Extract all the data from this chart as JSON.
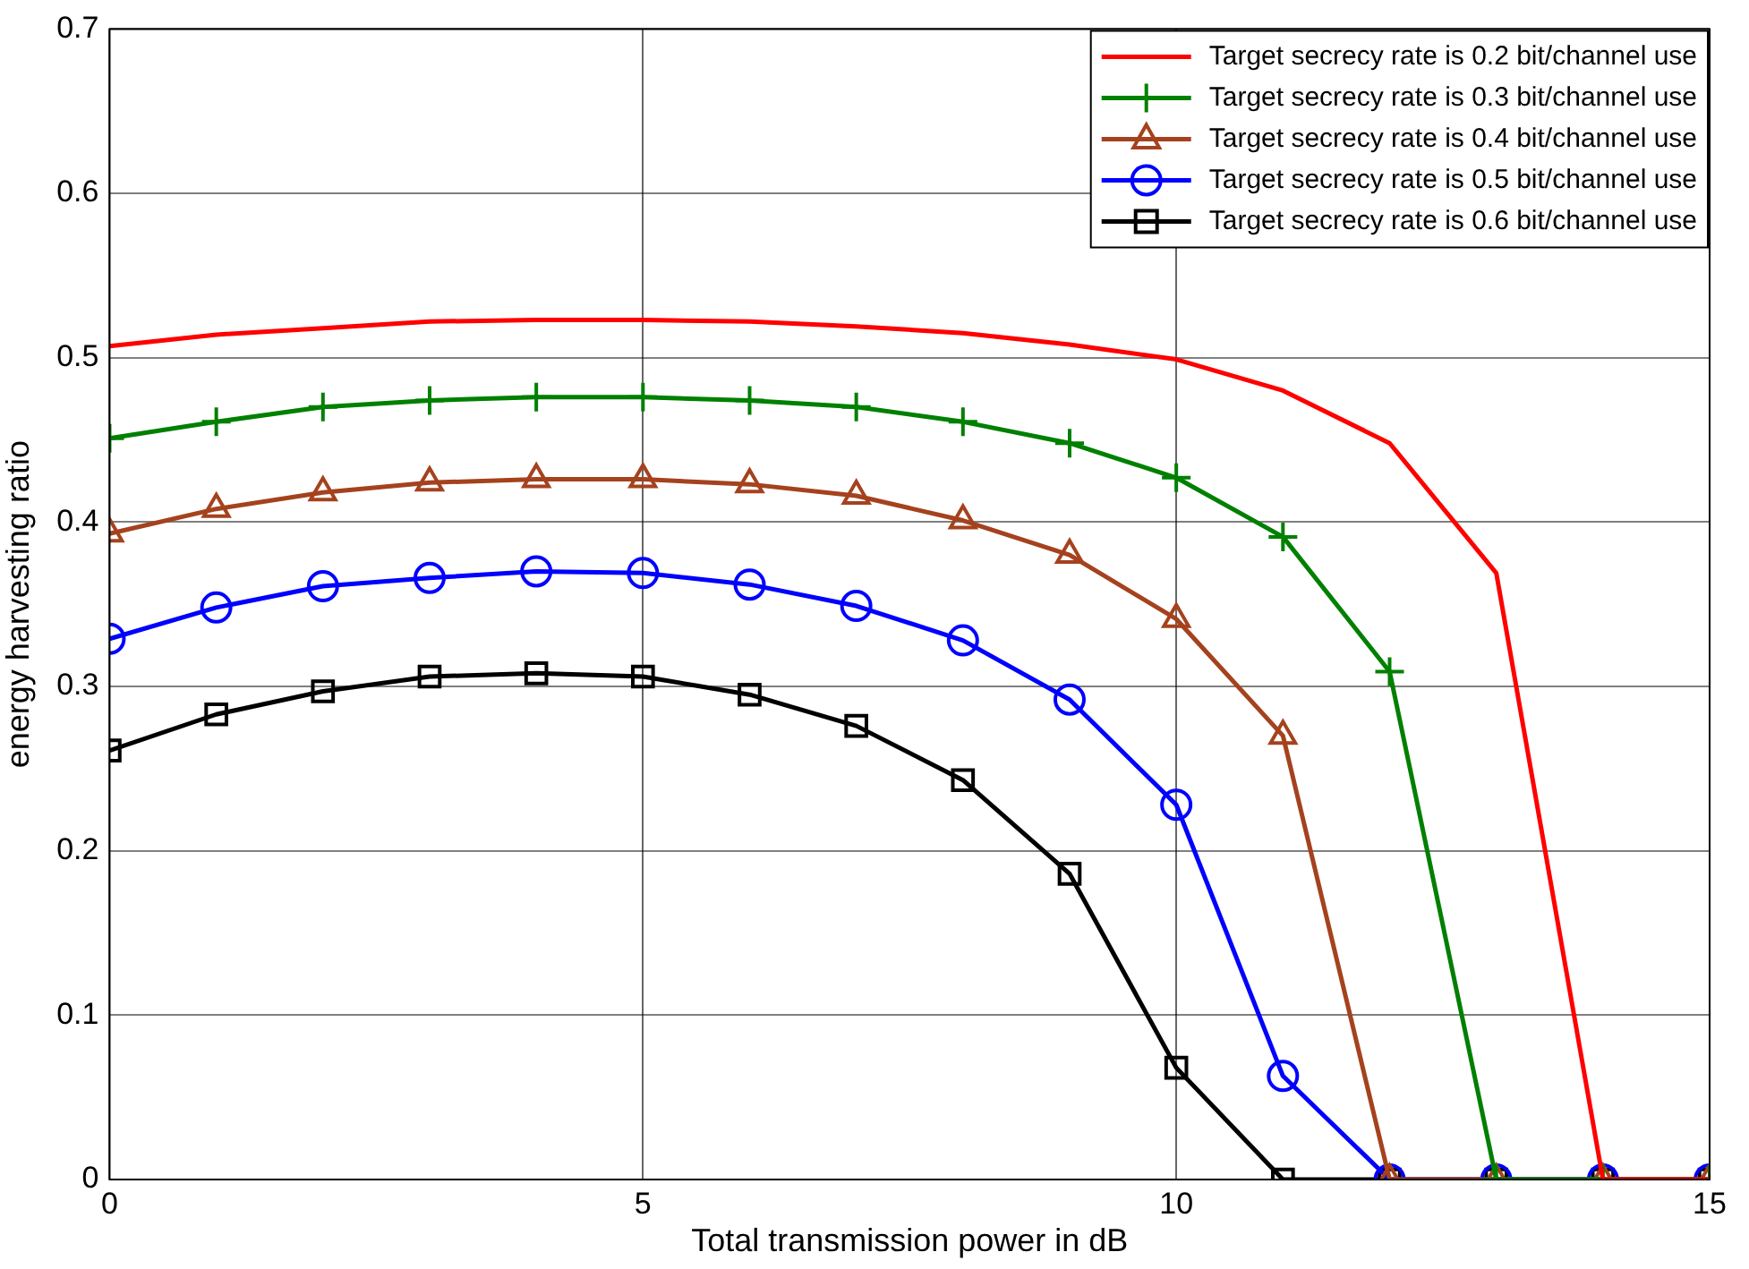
{
  "chart_data": {
    "type": "line",
    "xlabel": "Total transmission power in dB",
    "ylabel": "energy harvesting ratio",
    "x": [
      0,
      1,
      2,
      3,
      4,
      5,
      6,
      7,
      8,
      9,
      10,
      11,
      12,
      13,
      14,
      15
    ],
    "series": [
      {
        "name": "Target secrecy rate is 0.2 bit/channel use",
        "color": "#ff0000",
        "marker": "none",
        "values": [
          0.507,
          0.514,
          0.518,
          0.522,
          0.523,
          0.523,
          0.522,
          0.519,
          0.515,
          0.508,
          0.499,
          0.48,
          0.448,
          0.369,
          0,
          0
        ]
      },
      {
        "name": "Target secrecy rate is 0.3 bit/channel use",
        "color": "#008000",
        "marker": "cross",
        "values": [
          0.451,
          0.461,
          0.47,
          0.474,
          0.476,
          0.476,
          0.474,
          0.47,
          0.461,
          0.448,
          0.427,
          0.391,
          0.309,
          0,
          0,
          0
        ]
      },
      {
        "name": "Target secrecy rate is 0.4 bit/channel use",
        "color": "#a5421e",
        "marker": "triangle",
        "values": [
          0.393,
          0.408,
          0.418,
          0.424,
          0.426,
          0.426,
          0.423,
          0.416,
          0.401,
          0.38,
          0.341,
          0.27,
          0,
          0,
          0,
          0
        ]
      },
      {
        "name": "Target secrecy rate is 0.5 bit/channel use",
        "color": "#0000ff",
        "marker": "circle",
        "values": [
          0.329,
          0.348,
          0.361,
          0.366,
          0.37,
          0.369,
          0.362,
          0.349,
          0.328,
          0.292,
          0.228,
          0.063,
          0,
          0,
          0,
          0
        ]
      },
      {
        "name": "Target secrecy rate is 0.6 bit/channel use",
        "color": "#000000",
        "marker": "square",
        "values": [
          0.261,
          0.283,
          0.297,
          0.306,
          0.308,
          0.306,
          0.295,
          0.276,
          0.243,
          0.186,
          0.068,
          0,
          0,
          0,
          0,
          0
        ]
      }
    ],
    "xlim": [
      0,
      15
    ],
    "xticks": [
      0,
      5,
      10,
      15
    ],
    "ylim": [
      0,
      0.7
    ],
    "yticks": [
      0,
      0.1,
      0.2,
      0.3,
      0.4,
      0.5,
      0.6,
      0.7
    ],
    "grid": true,
    "legend": "top right",
    "line_style": "solid"
  }
}
